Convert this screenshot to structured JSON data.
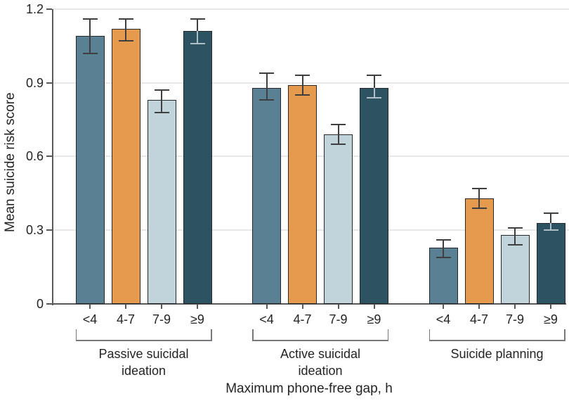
{
  "chart_data": {
    "type": "bar",
    "title": "",
    "ylabel": "Mean suicide risk score",
    "xlabel": "Maximum phone-free gap, h",
    "ylim": [
      0,
      1.2
    ],
    "yticks": [
      "0",
      "0.3",
      "0.6",
      "0.9",
      "1.2"
    ],
    "ytick_values": [
      0,
      0.3,
      0.6,
      0.9,
      1.2
    ],
    "grid": "horizontal-light",
    "legend": "none",
    "categories": [
      "<4",
      "4-7",
      "7-9",
      "≥9"
    ],
    "category_colors": [
      "#5a8193",
      "#e59a4e",
      "#c1d4dc",
      "#2d5363"
    ],
    "colors": {
      "bar_border": "#25292b",
      "error_bar": "#3f3f3f",
      "error_bar_inner_on_dark": "#aebfc6",
      "gridline": "#e8e8e8",
      "axis": "#58595b",
      "bracket": "#77787a",
      "text": "#242424"
    },
    "groups": [
      {
        "label": "Passive suicidal ideation",
        "label_lines": [
          "Passive suicidal",
          "ideation"
        ],
        "bars": [
          {
            "category": "<4",
            "value": 1.09,
            "ci_low": 1.02,
            "ci_high": 1.16
          },
          {
            "category": "4-7",
            "value": 1.12,
            "ci_low": 1.07,
            "ci_high": 1.16
          },
          {
            "category": "7-9",
            "value": 0.83,
            "ci_low": 0.78,
            "ci_high": 0.87
          },
          {
            "category": "≥9",
            "value": 1.11,
            "ci_low": 1.06,
            "ci_high": 1.16
          }
        ]
      },
      {
        "label": "Active suicidal ideation",
        "label_lines": [
          "Active suicidal",
          "ideation"
        ],
        "bars": [
          {
            "category": "<4",
            "value": 0.88,
            "ci_low": 0.83,
            "ci_high": 0.94
          },
          {
            "category": "4-7",
            "value": 0.89,
            "ci_low": 0.85,
            "ci_high": 0.93
          },
          {
            "category": "7-9",
            "value": 0.69,
            "ci_low": 0.65,
            "ci_high": 0.73
          },
          {
            "category": "≥9",
            "value": 0.88,
            "ci_low": 0.84,
            "ci_high": 0.93
          }
        ]
      },
      {
        "label": "Suicide planning",
        "label_lines": [
          "Suicide planning"
        ],
        "bars": [
          {
            "category": "<4",
            "value": 0.23,
            "ci_low": 0.19,
            "ci_high": 0.26
          },
          {
            "category": "4-7",
            "value": 0.43,
            "ci_low": 0.39,
            "ci_high": 0.47
          },
          {
            "category": "7-9",
            "value": 0.28,
            "ci_low": 0.24,
            "ci_high": 0.31
          },
          {
            "category": "≥9",
            "value": 0.33,
            "ci_low": 0.3,
            "ci_high": 0.37
          }
        ]
      }
    ]
  }
}
